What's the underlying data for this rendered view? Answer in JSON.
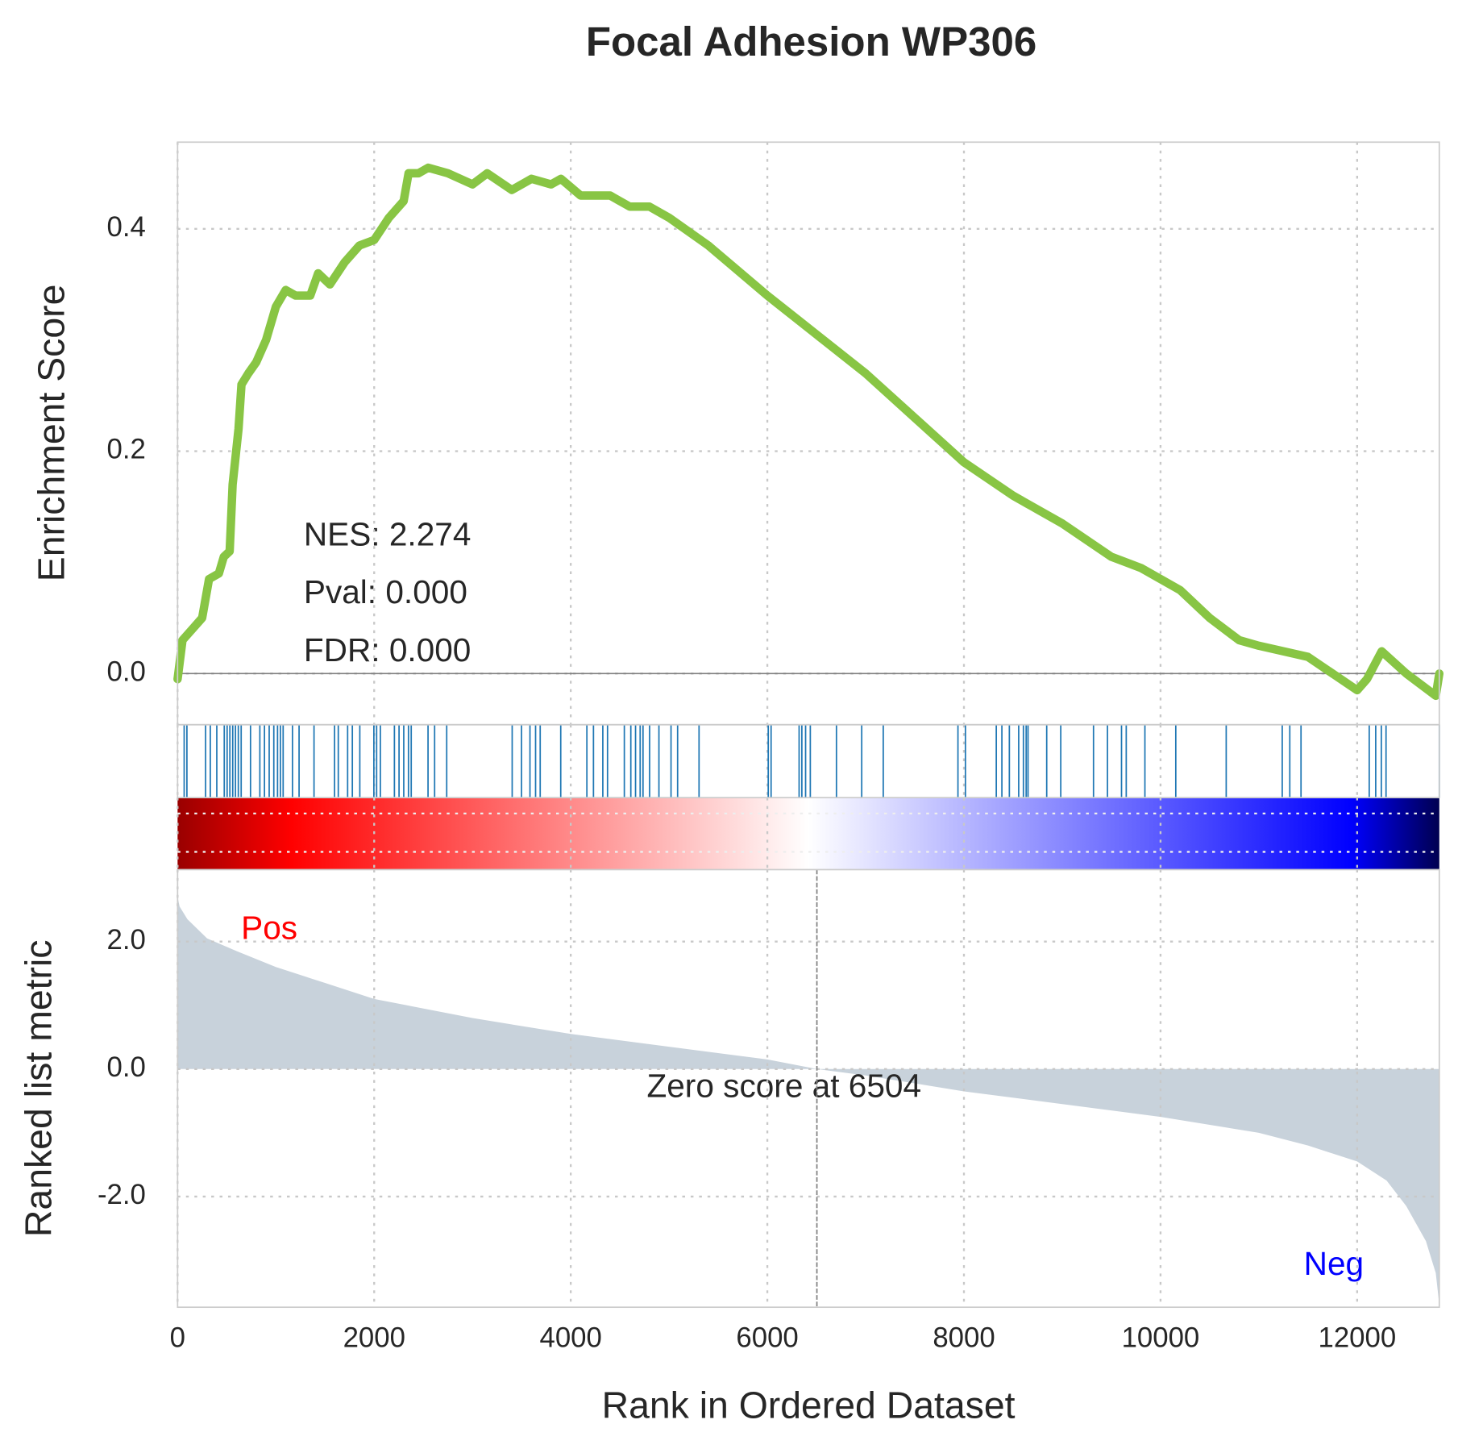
{
  "chart_data": [
    {
      "type": "line",
      "title": "Focal Adhesion WP306",
      "ylabel": "Enrichment Score",
      "color": "#88c544",
      "grid": true,
      "x": [
        0,
        50,
        150,
        250,
        320,
        420,
        470,
        530,
        560,
        620,
        650,
        720,
        800,
        900,
        1000,
        1100,
        1200,
        1350,
        1430,
        1550,
        1700,
        1850,
        2000,
        2150,
        2300,
        2350,
        2450,
        2550,
        2750,
        3000,
        3150,
        3400,
        3600,
        3800,
        3900,
        4100,
        4400,
        4600,
        4800,
        5000,
        5400,
        6000,
        6500,
        7000,
        7500,
        8000,
        8500,
        8700,
        9000,
        9500,
        9800,
        10200,
        10500,
        10800,
        11000,
        11500,
        12000,
        12100,
        12250,
        12500,
        12800,
        12836
      ],
      "values": [
        -0.005,
        0.03,
        0.04,
        0.05,
        0.085,
        0.09,
        0.105,
        0.11,
        0.17,
        0.22,
        0.26,
        0.27,
        0.28,
        0.3,
        0.33,
        0.345,
        0.34,
        0.34,
        0.36,
        0.35,
        0.37,
        0.385,
        0.39,
        0.41,
        0.425,
        0.45,
        0.45,
        0.455,
        0.45,
        0.44,
        0.45,
        0.435,
        0.445,
        0.44,
        0.445,
        0.43,
        0.43,
        0.42,
        0.42,
        0.41,
        0.385,
        0.34,
        0.305,
        0.27,
        0.23,
        0.19,
        0.16,
        0.15,
        0.135,
        0.105,
        0.095,
        0.075,
        0.05,
        0.03,
        0.025,
        0.015,
        -0.015,
        -0.005,
        0.02,
        0.0,
        -0.02,
        0.0
      ],
      "ylim": [
        -0.046,
        0.478
      ],
      "yticks": [
        {
          "value": 0,
          "label": "0.0"
        },
        0.2,
        0.4
      ],
      "annotations": [
        "NES: 2.274",
        "Pval: 0.000",
        "FDR: 0.000"
      ]
    },
    {
      "type": "hits",
      "color": "#1f77b4",
      "x": [
        67,
        95,
        285,
        333,
        399,
        475,
        504,
        532,
        561,
        589,
        618,
        647,
        742,
        837,
        884,
        932,
        979,
        1017,
        1046,
        1074,
        1169,
        1236,
        1388,
        1597,
        1635,
        1730,
        1778,
        1854,
        1997,
        2025,
        2063,
        2206,
        2253,
        2301,
        2349,
        2377,
        2548,
        2615,
        2738,
        3404,
        3499,
        3585,
        3642,
        3689,
        3898,
        4164,
        4231,
        4326,
        4374,
        4545,
        4611,
        4659,
        4706,
        4735,
        4802,
        4897,
        5020,
        5087,
        5305,
        6009,
        6038,
        6323,
        6351,
        6389,
        6437,
        6703,
        6960,
        7179,
        7939,
        8015,
        8329,
        8386,
        8462,
        8557,
        8605,
        8633,
        8652,
        8842,
        8985,
        9318,
        9460,
        9603,
        9651,
        9841,
        10155,
        10668,
        11238,
        11315,
        11429,
        12123,
        12189,
        12246,
        12294,
        12836
      ]
    },
    {
      "type": "area",
      "ylabel": "Ranked list metric",
      "xlabel": "Rank in Ordered Dataset",
      "color": "#c8d2db",
      "grid": true,
      "x": [
        0,
        20,
        100,
        300,
        600,
        1000,
        1500,
        2000,
        3000,
        4000,
        5000,
        6000,
        6504,
        7000,
        8000,
        9000,
        10000,
        11000,
        11500,
        12000,
        12300,
        12500,
        12700,
        12800,
        12836
      ],
      "values": [
        2.7,
        2.55,
        2.35,
        2.05,
        1.85,
        1.6,
        1.35,
        1.1,
        0.8,
        0.55,
        0.35,
        0.15,
        0.0,
        -0.1,
        -0.35,
        -0.55,
        -0.75,
        -1.0,
        -1.2,
        -1.45,
        -1.75,
        -2.15,
        -2.7,
        -3.2,
        -3.7
      ],
      "xlim": [
        0,
        12836
      ],
      "xticks": [
        0,
        2000,
        4000,
        6000,
        8000,
        10000,
        12000
      ],
      "ylim": [
        -3.736,
        3.128
      ],
      "yticks": [
        {
          "value": 2,
          "label": "2.0"
        },
        {
          "value": 0,
          "label": "0.0"
        },
        {
          "value": -2,
          "label": "-2.0"
        }
      ],
      "pos_label": "Pos",
      "neg_label": "Neg",
      "zero_label": "Zero score at 6504",
      "zero_rank": 6504
    }
  ]
}
